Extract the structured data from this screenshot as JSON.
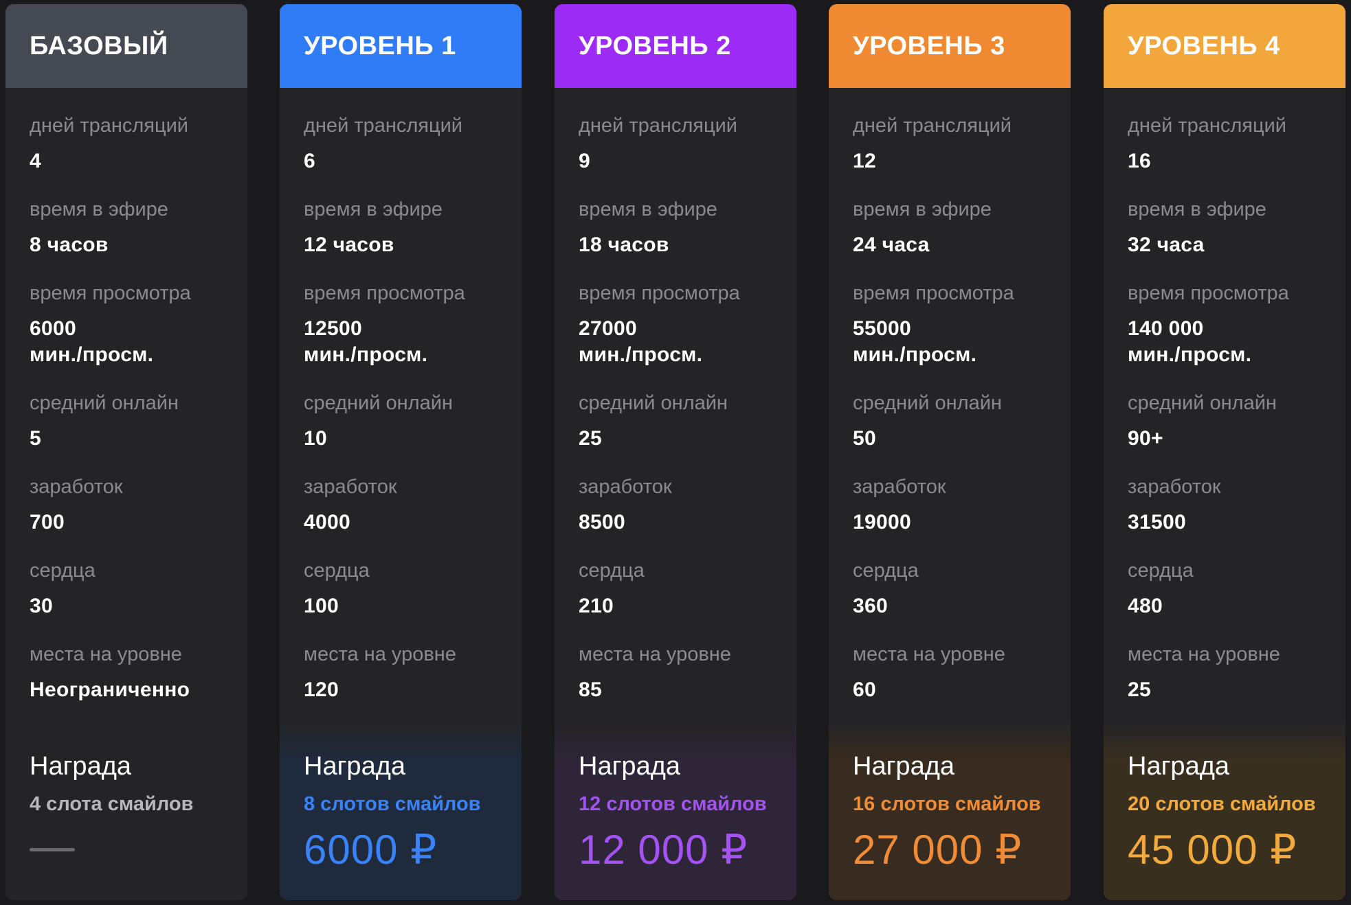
{
  "labels": {
    "days": "дней трансляций",
    "airtime": "время в эфире",
    "watchtime": "время просмотра",
    "online": "средний онлайн",
    "earnings": "заработок",
    "hearts": "сердца",
    "places": "места на уровне",
    "reward": "Награда"
  },
  "tiers": [
    {
      "name": "БАЗОВЫЙ",
      "color": "#454a52",
      "days": "4",
      "airtime": "8 часов",
      "watchtime": "6000\nмин./просм.",
      "online": "5",
      "earnings": "700",
      "hearts": "30",
      "places": "Неограниченно",
      "reward_slots": "4 слота смайлов",
      "reward_price": "",
      "reward_color": "#b8b8bc",
      "reward_bg": "#242426"
    },
    {
      "name": "УРОВЕНЬ 1",
      "color": "#2f7cf6",
      "days": "6",
      "airtime": "12 часов",
      "watchtime": "12500\nмин./просм.",
      "online": "10",
      "earnings": "4000",
      "hearts": "100",
      "places": "120",
      "reward_slots": "8 слотов смайлов",
      "reward_price": "6000 ₽",
      "reward_color": "#3a82f7",
      "reward_bg": "#1f2a3d"
    },
    {
      "name": "УРОВЕНЬ 2",
      "color": "#9b2bf5",
      "days": "9",
      "airtime": "18 часов",
      "watchtime": "27000\nмин./просм.",
      "online": "25",
      "earnings": "8500",
      "hearts": "210",
      "places": "85",
      "reward_slots": "12 слотов смайлов",
      "reward_price": "12 000 ₽",
      "reward_color": "#a452f2",
      "reward_bg": "#2e2538"
    },
    {
      "name": "УРОВЕНЬ 3",
      "color": "#ef8a33",
      "days": "12",
      "airtime": "24 часа",
      "watchtime": "55000\nмин./просм.",
      "online": "50",
      "earnings": "19000",
      "hearts": "360",
      "places": "60",
      "reward_slots": "16 слотов смайлов",
      "reward_price": "27 000 ₽",
      "reward_color": "#f08c35",
      "reward_bg": "#382b1f"
    },
    {
      "name": "УРОВЕНЬ 4",
      "color": "#f2a63b",
      "days": "16",
      "airtime": "32 часа",
      "watchtime": "140 000\nмин./просм.",
      "online": "90+",
      "earnings": "31500",
      "hearts": "480",
      "places": "25",
      "reward_slots": "20 слотов смайлов",
      "reward_price": "45 000 ₽",
      "reward_color": "#f3aa3c",
      "reward_bg": "#382f1f"
    }
  ]
}
